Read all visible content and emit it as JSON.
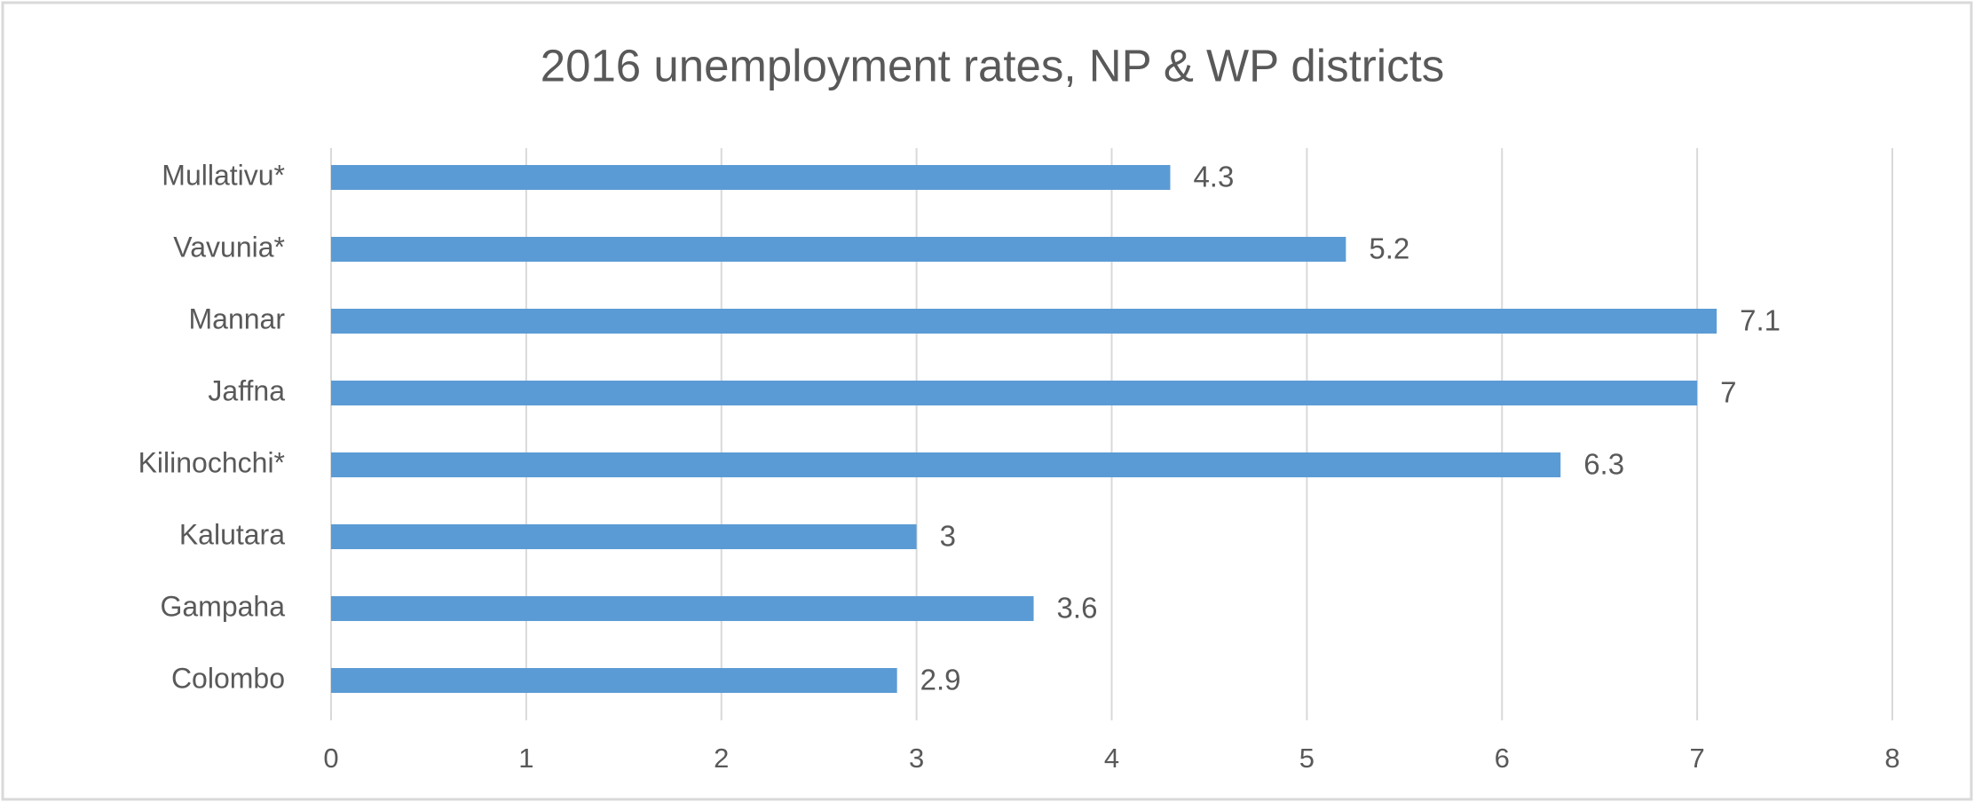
{
  "chart_data": {
    "type": "bar",
    "orientation": "horizontal",
    "title": "2016 unemployment rates, NP & WP districts",
    "categories": [
      "Mullativu*",
      "Vavunia*",
      "Mannar",
      "Jaffna",
      "Kilinochchi*",
      "Kalutara",
      "Gampaha",
      "Colombo"
    ],
    "values": [
      4.3,
      5.2,
      7.1,
      7,
      6.3,
      3,
      3.6,
      2.9
    ],
    "color": "#5b9bd5",
    "xlim": [
      0,
      8
    ],
    "xticks": [
      0,
      1,
      2,
      3,
      4,
      5,
      6,
      7,
      8
    ],
    "grid": true
  }
}
